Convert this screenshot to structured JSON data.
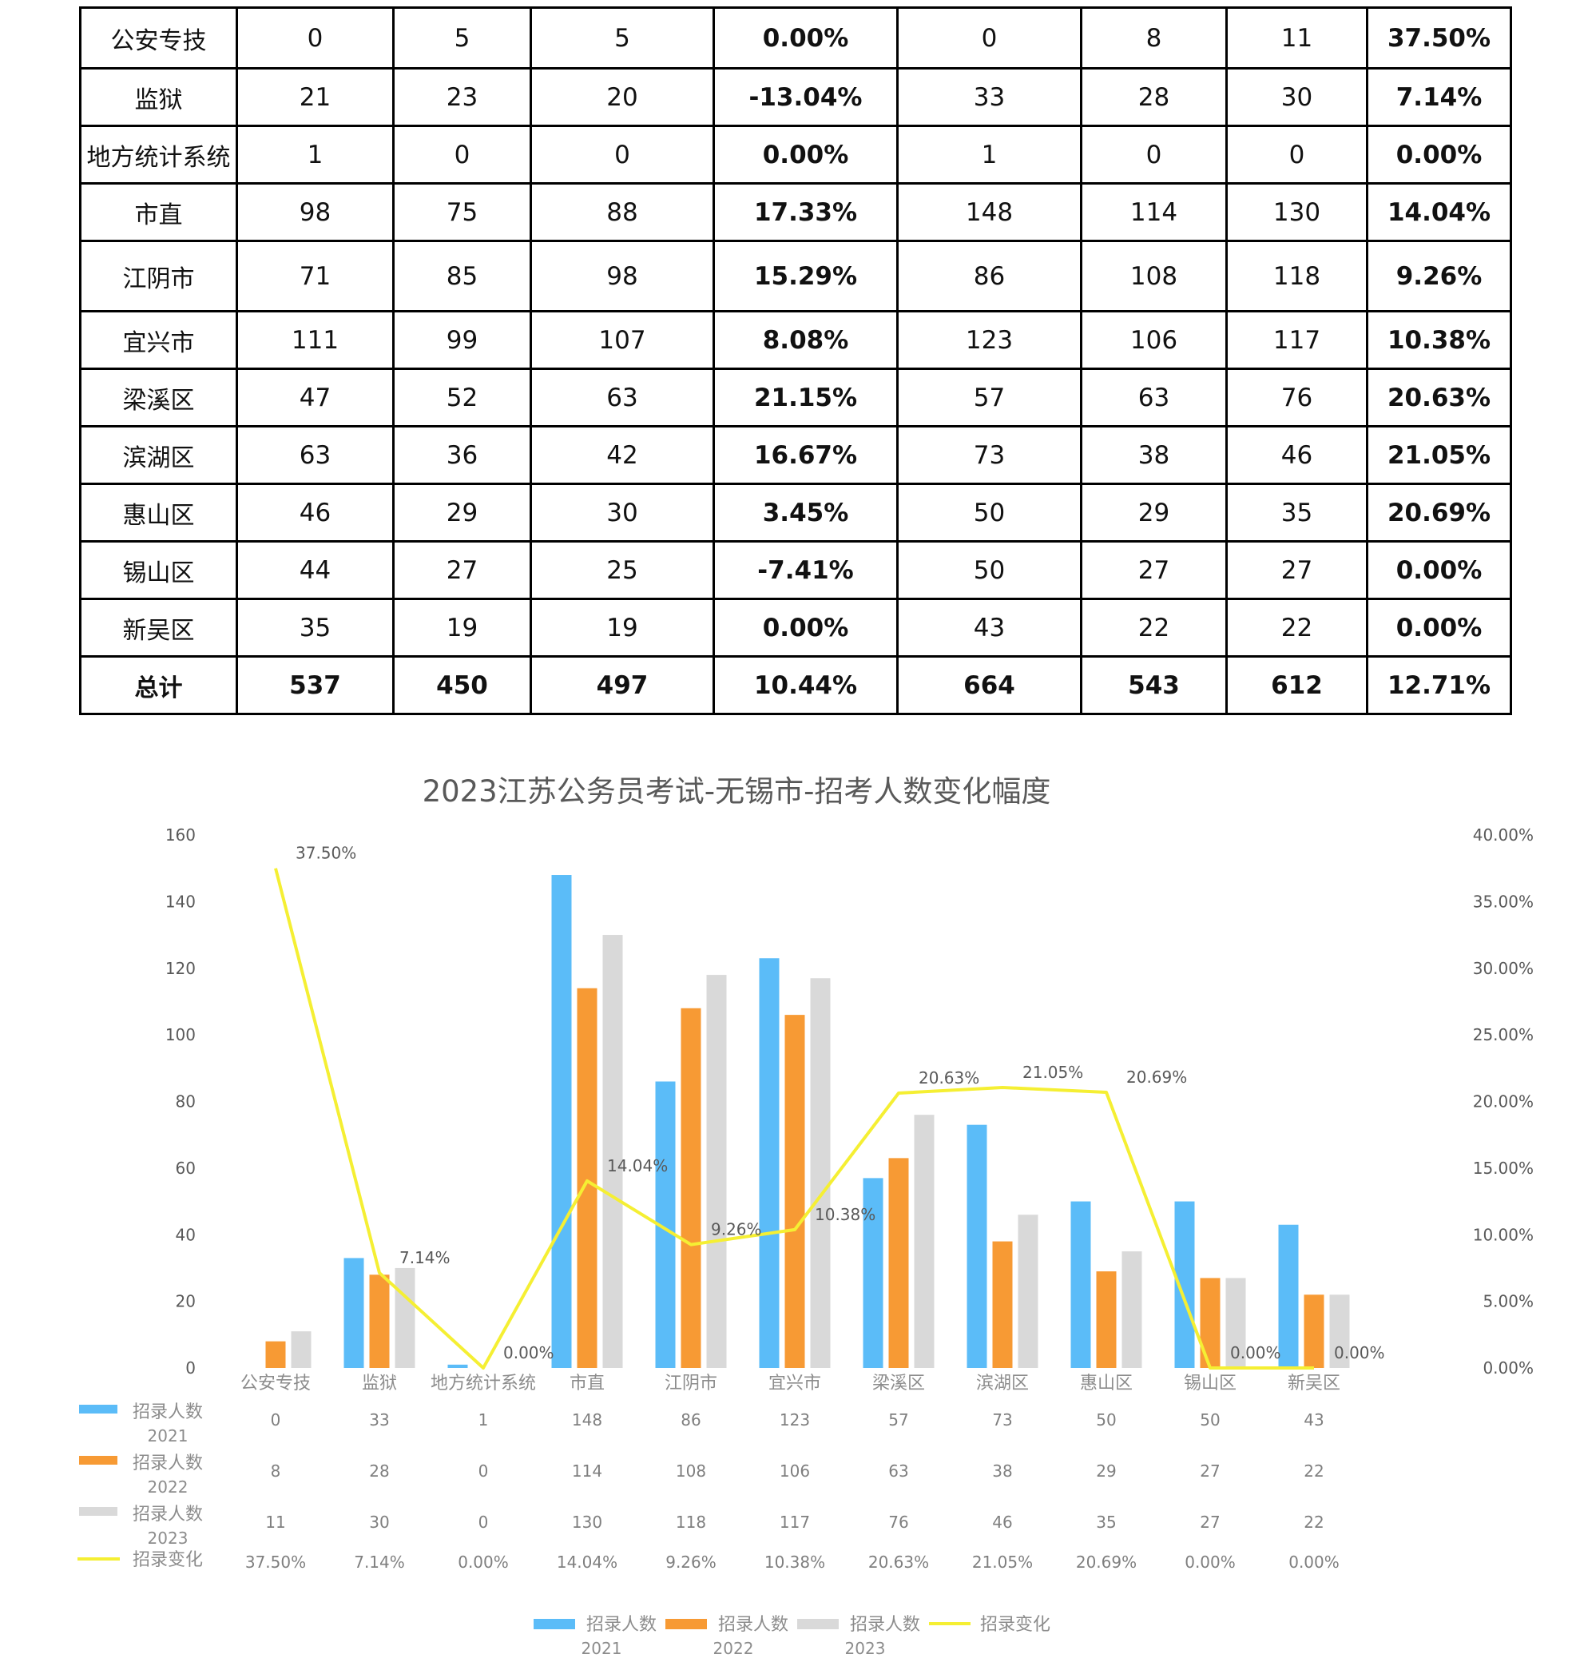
{
  "table": {
    "rows": [
      {
        "name": "公安专技",
        "v2021a": "0",
        "v2022a": "5",
        "v2023a": "5",
        "pct_a": "0.00%",
        "v2021b": "0",
        "v2022b": "8",
        "v2023b": "11",
        "pct_b": "37.50%"
      },
      {
        "name": "监狱",
        "v2021a": "21",
        "v2022a": "23",
        "v2023a": "20",
        "pct_a": "-13.04%",
        "v2021b": "33",
        "v2022b": "28",
        "v2023b": "30",
        "pct_b": "7.14%"
      },
      {
        "name": "地方统计系统",
        "v2021a": "1",
        "v2022a": "0",
        "v2023a": "0",
        "pct_a": "0.00%",
        "v2021b": "1",
        "v2022b": "0",
        "v2023b": "0",
        "pct_b": "0.00%"
      },
      {
        "name": "市直",
        "v2021a": "98",
        "v2022a": "75",
        "v2023a": "88",
        "pct_a": "17.33%",
        "v2021b": "148",
        "v2022b": "114",
        "v2023b": "130",
        "pct_b": "14.04%"
      },
      {
        "name": "江阴市",
        "v2021a": "71",
        "v2022a": "85",
        "v2023a": "98",
        "pct_a": "15.29%",
        "v2021b": "86",
        "v2022b": "108",
        "v2023b": "118",
        "pct_b": "9.26%"
      },
      {
        "name": "宜兴市",
        "v2021a": "111",
        "v2022a": "99",
        "v2023a": "107",
        "pct_a": "8.08%",
        "v2021b": "123",
        "v2022b": "106",
        "v2023b": "117",
        "pct_b": "10.38%"
      },
      {
        "name": "梁溪区",
        "v2021a": "47",
        "v2022a": "52",
        "v2023a": "63",
        "pct_a": "21.15%",
        "v2021b": "57",
        "v2022b": "63",
        "v2023b": "76",
        "pct_b": "20.63%"
      },
      {
        "name": "滨湖区",
        "v2021a": "63",
        "v2022a": "36",
        "v2023a": "42",
        "pct_a": "16.67%",
        "v2021b": "73",
        "v2022b": "38",
        "v2023b": "46",
        "pct_b": "21.05%"
      },
      {
        "name": "惠山区",
        "v2021a": "46",
        "v2022a": "29",
        "v2023a": "30",
        "pct_a": "3.45%",
        "v2021b": "50",
        "v2022b": "29",
        "v2023b": "35",
        "pct_b": "20.69%"
      },
      {
        "name": "锡山区",
        "v2021a": "44",
        "v2022a": "27",
        "v2023a": "25",
        "pct_a": "-7.41%",
        "v2021b": "50",
        "v2022b": "27",
        "v2023b": "27",
        "pct_b": "0.00%"
      },
      {
        "name": "新吴区",
        "v2021a": "35",
        "v2022a": "19",
        "v2023a": "19",
        "pct_a": "0.00%",
        "v2021b": "43",
        "v2022b": "22",
        "v2023b": "22",
        "pct_b": "0.00%"
      }
    ],
    "total": {
      "name": "总计",
      "v2021a": "537",
      "v2022a": "450",
      "v2023a": "497",
      "pct_a": "10.44%",
      "v2021b": "664",
      "v2022b": "543",
      "v2023b": "612",
      "pct_b": "12.71%"
    }
  },
  "chart_data": {
    "type": "bar",
    "title": "2023江苏公务员考试-无锡市-招考人数变化幅度",
    "categories": [
      "公安专技",
      "监狱",
      "地方统计系统",
      "市直",
      "江阴市",
      "宜兴市",
      "梁溪区",
      "滨湖区",
      "惠山区",
      "锡山区",
      "新吴区"
    ],
    "series": [
      {
        "name": "招录人数",
        "year": "2021",
        "color": "#5bbcf8",
        "values": [
          0,
          33,
          1,
          148,
          86,
          123,
          57,
          73,
          50,
          50,
          43
        ]
      },
      {
        "name": "招录人数",
        "year": "2022",
        "color": "#f79a34",
        "values": [
          8,
          28,
          0,
          114,
          108,
          106,
          63,
          38,
          29,
          27,
          22
        ]
      },
      {
        "name": "招录人数",
        "year": "2023",
        "color": "#d9d9d9",
        "values": [
          11,
          30,
          0,
          130,
          118,
          117,
          76,
          46,
          35,
          27,
          22
        ]
      }
    ],
    "line": {
      "name": "招录变化",
      "color": "#f5ef33",
      "values": [
        37.5,
        7.14,
        0,
        14.04,
        9.26,
        10.38,
        20.63,
        21.05,
        20.69,
        0,
        0
      ],
      "labels": [
        "37.50%",
        "7.14%",
        "0.00%",
        "14.04%",
        "9.26%",
        "10.38%",
        "20.63%",
        "21.05%",
        "20.69%",
        "0.00%",
        "0.00%"
      ]
    },
    "ylim": [
      0,
      160
    ],
    "yticks": [
      "0",
      "20",
      "40",
      "60",
      "80",
      "100",
      "120",
      "140",
      "160"
    ],
    "y2lim": [
      0,
      40
    ],
    "y2ticks": [
      "0.00%",
      "5.00%",
      "10.00%",
      "15.00%",
      "20.00%",
      "25.00%",
      "30.00%",
      "35.00%",
      "40.00%"
    ],
    "legend_position": "bottom",
    "data_table": true
  }
}
